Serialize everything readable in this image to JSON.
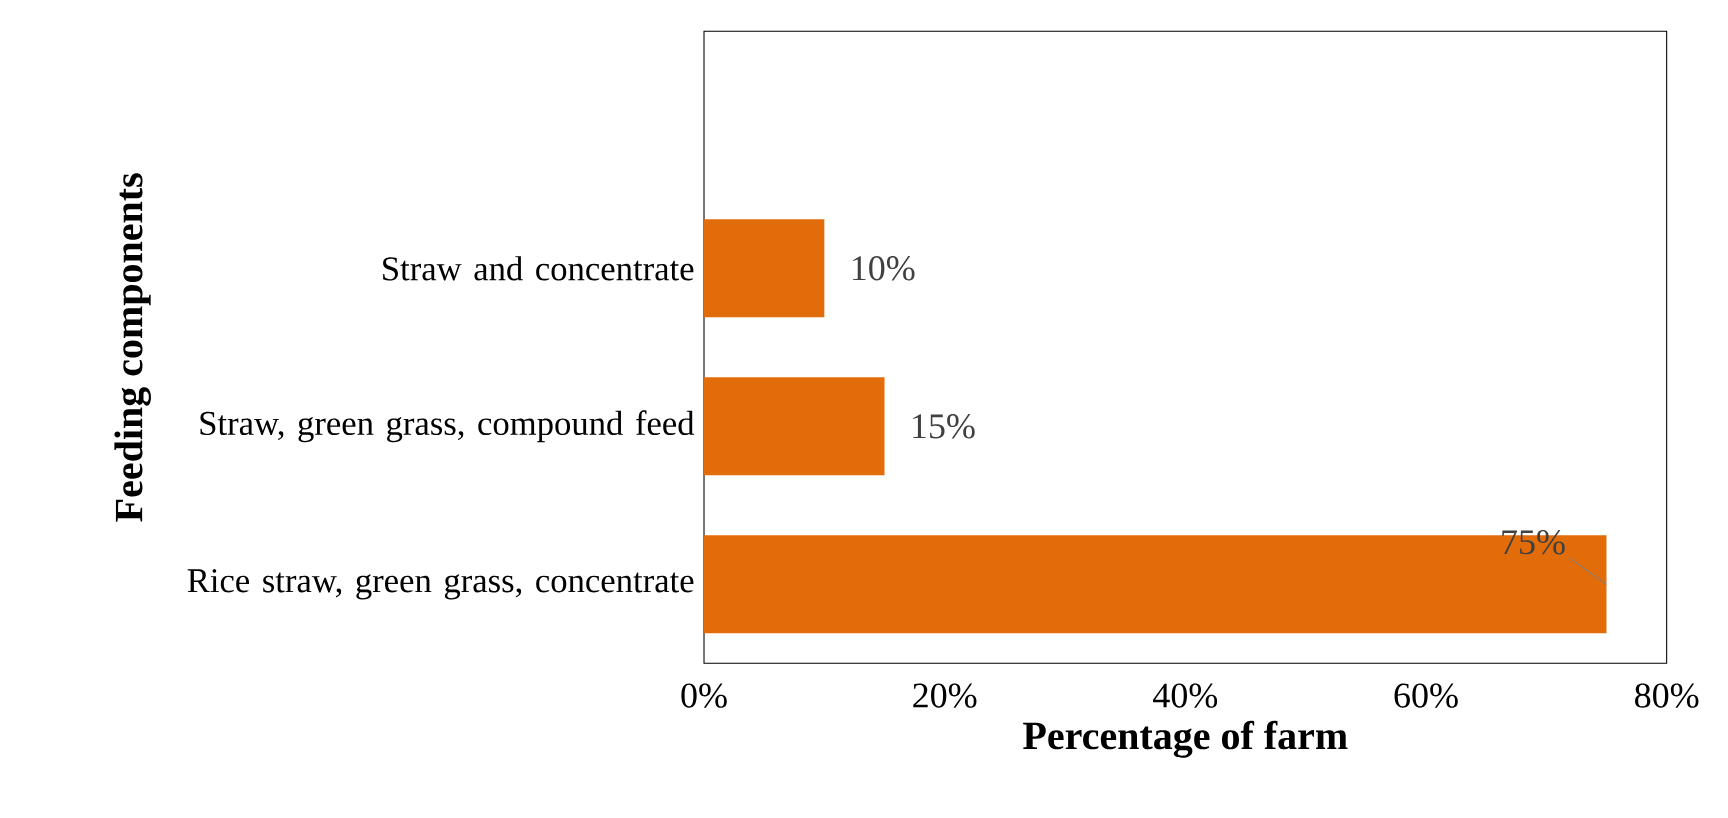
{
  "chart_data": {
    "type": "bar",
    "orientation": "horizontal",
    "xlabel": "Percentage of farm",
    "ylabel": "Feeding components",
    "categories": [
      null,
      "Straw and concentrate",
      "Straw, green grass, compound feed",
      "Rice straw, green grass, concentrate"
    ],
    "values": [
      null,
      10,
      15,
      75
    ],
    "value_labels": [
      null,
      "10%",
      "15%",
      "75%"
    ],
    "color": "#e36c0a",
    "xlim": [
      0,
      80
    ],
    "xticks": [
      {
        "value": 0,
        "label": "0%"
      },
      {
        "value": 20,
        "label": "20%"
      },
      {
        "value": 40,
        "label": "40%"
      },
      {
        "value": 60,
        "label": "60%"
      },
      {
        "value": 80,
        "label": "80%"
      }
    ],
    "grid": false
  }
}
